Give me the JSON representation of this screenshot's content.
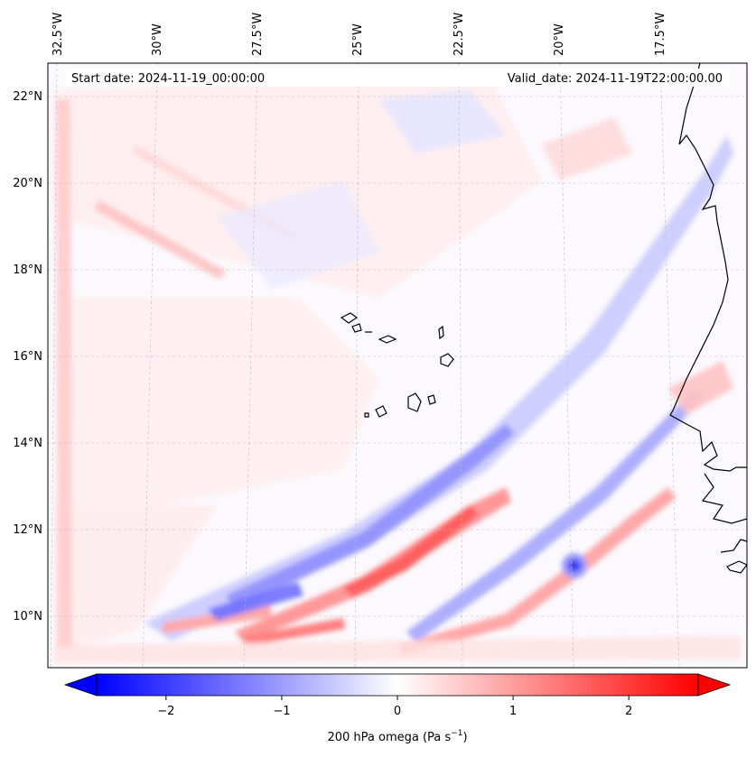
{
  "map": {
    "start_date_text": "Start date: 2024-11-19_00:00:00",
    "valid_date_text": "Valid_date: 2024-11-19T22:00:00.00",
    "lon_labels": [
      "32.5°W",
      "30°W",
      "27.5°W",
      "25°W",
      "22.5°W",
      "20°W",
      "17.5°W"
    ],
    "lat_labels": [
      "22°N",
      "20°N",
      "18°N",
      "16°N",
      "14°N",
      "12°N",
      "10°N"
    ],
    "field": "200 hPa omega"
  },
  "colorbar": {
    "label_prefix": "200 hPa omega (Pa s",
    "label_exp": "−1",
    "label_suffix": ")",
    "tick_labels": [
      "−2",
      "−1",
      "0",
      "1",
      "2"
    ],
    "tick_values": [
      -2,
      -1,
      0,
      1,
      2
    ],
    "range": [
      -2.6,
      2.6
    ],
    "cmap": "bwr",
    "low_color": "#0000ff",
    "mid_color": "#ffffff",
    "high_color": "#ff0000"
  }
}
